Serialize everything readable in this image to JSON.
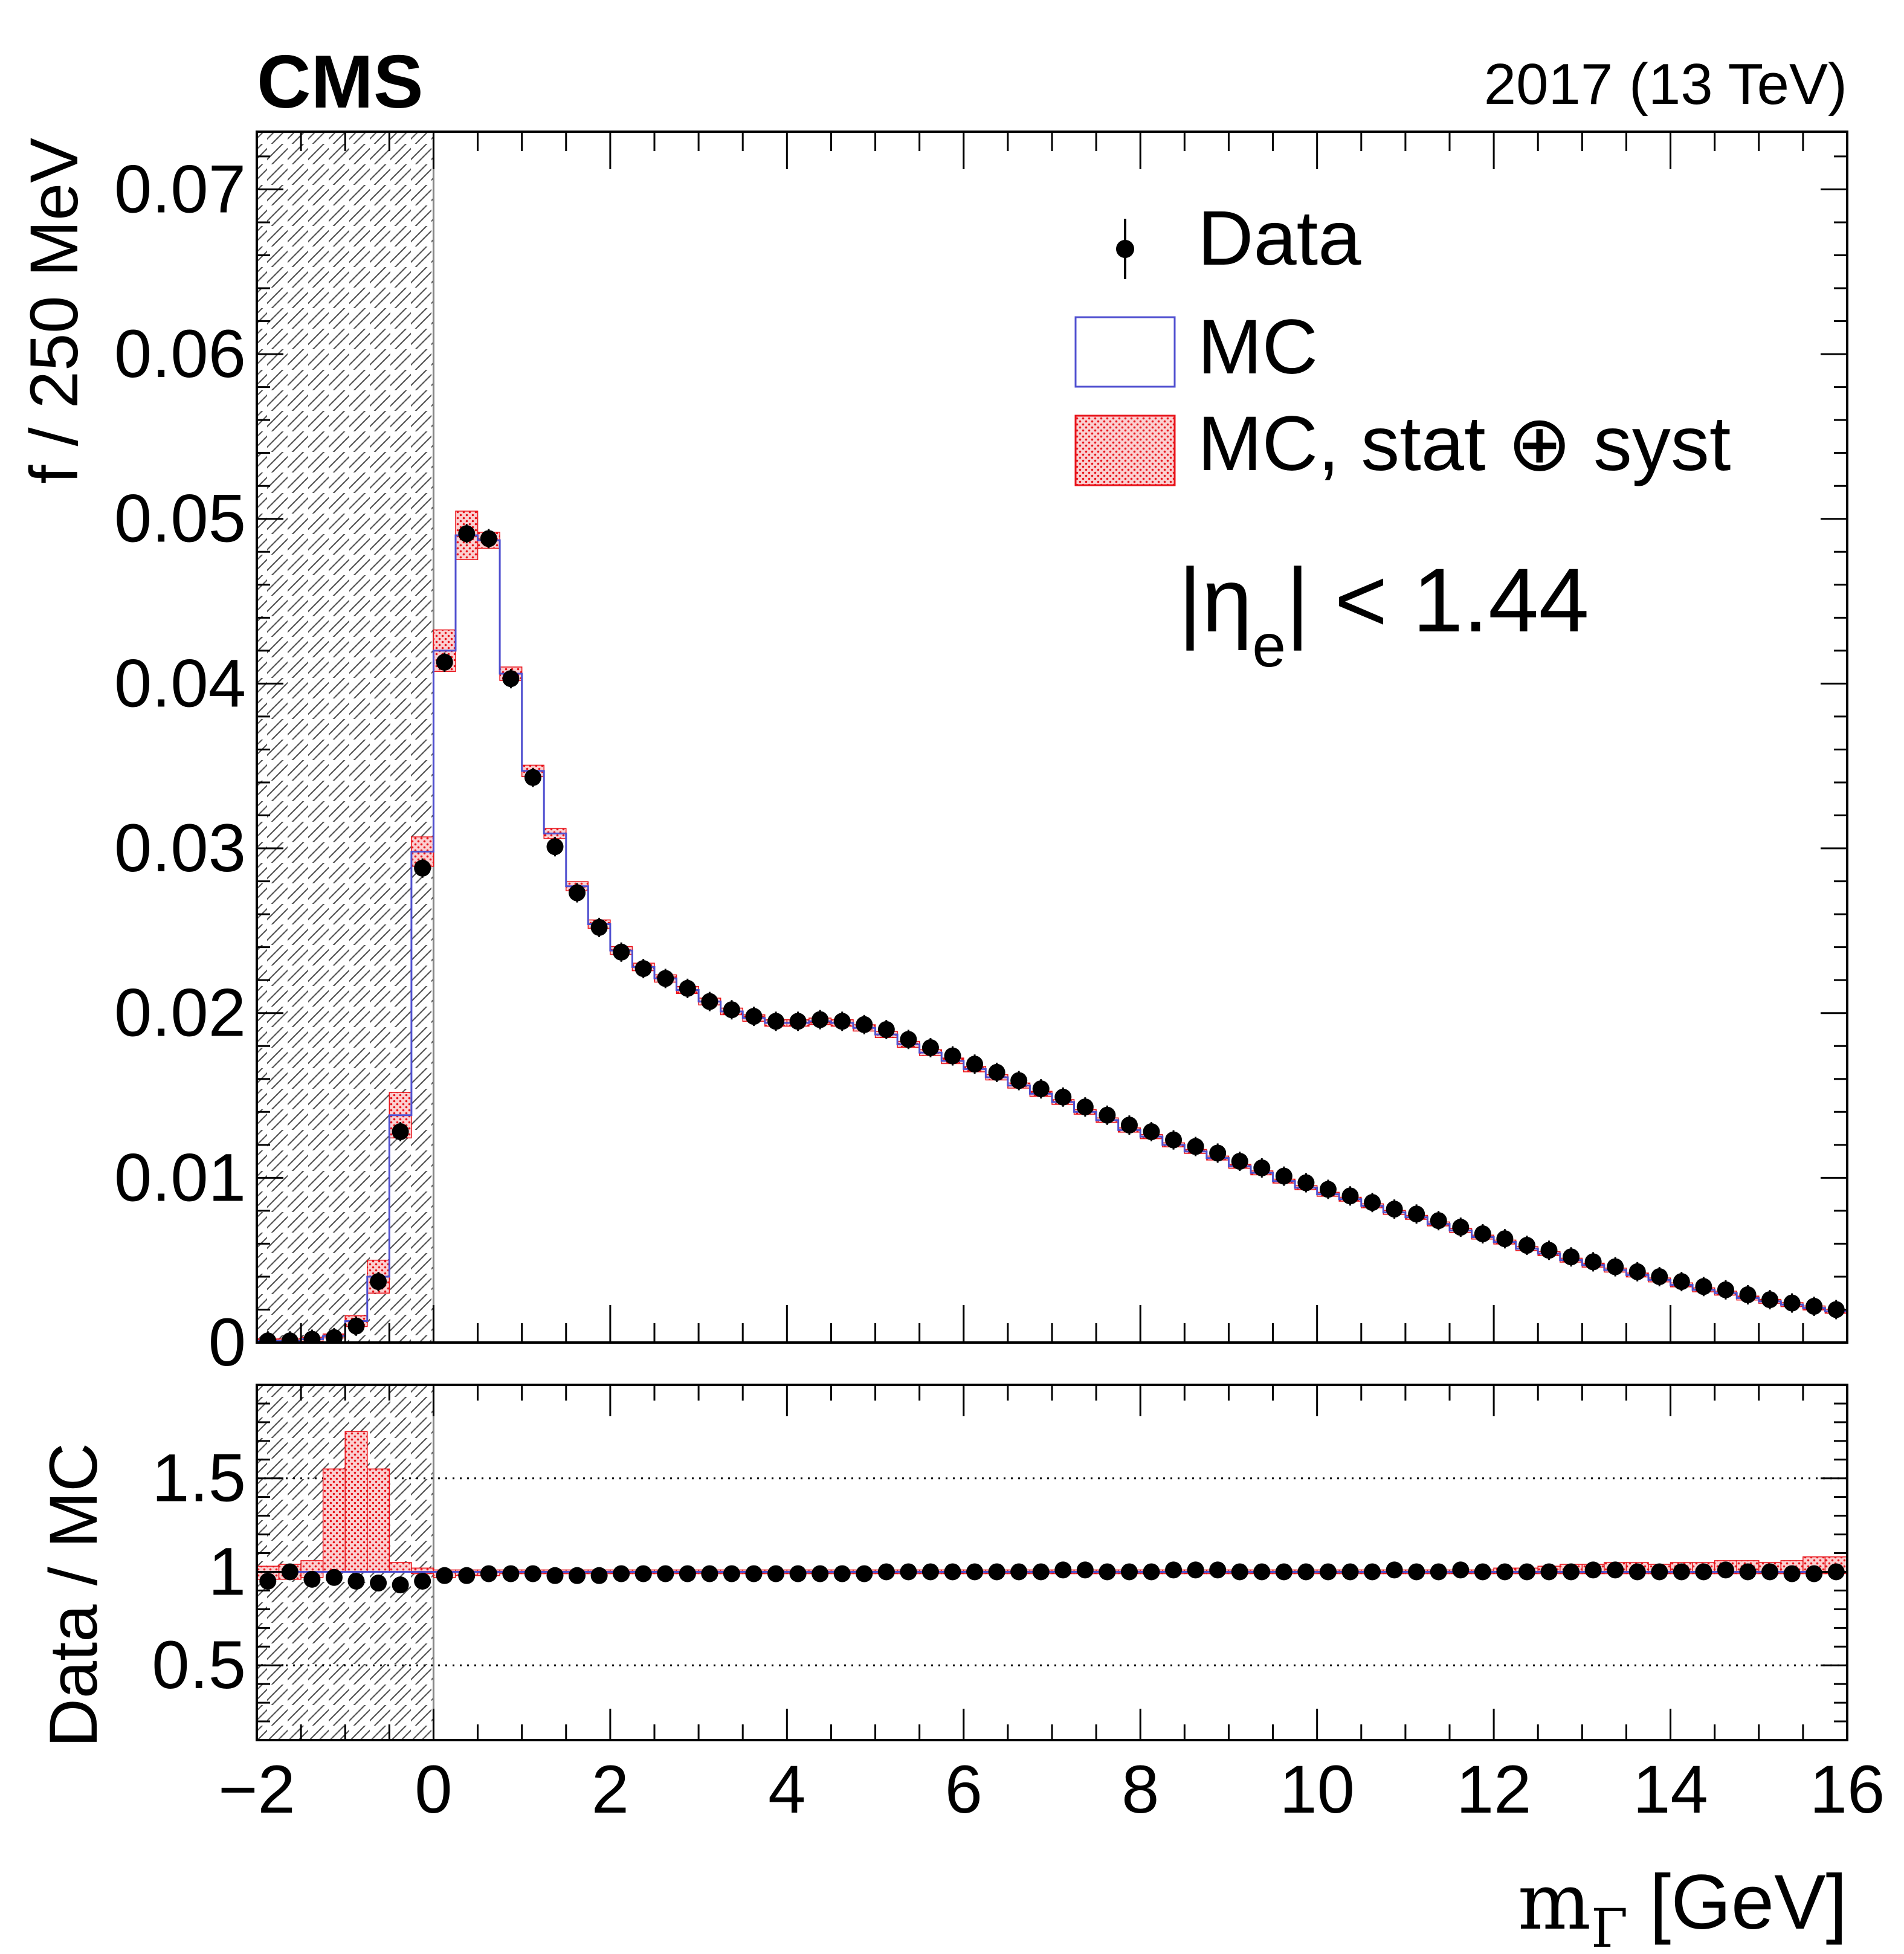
{
  "colors": {
    "data": "#000000",
    "mc_line": "#5050d0",
    "band": "#e8141b",
    "band_fill": "#f7a6a8",
    "hatch": "#555555"
  },
  "chart_data": [
    {
      "type": "line",
      "name": "main",
      "experiment_label": "CMS",
      "energy_label": "2017 (13 TeV)",
      "annotation": {
        "text": "|η",
        "subscript": "e",
        "rest": "| < 1.44"
      },
      "ylabel": "f / 250 MeV",
      "xlim": [
        -2,
        16
      ],
      "ylim": [
        0,
        0.0735
      ],
      "y_ticks": [
        {
          "v": 0,
          "label": "0"
        },
        {
          "v": 0.01,
          "label": "0.01"
        },
        {
          "v": 0.02,
          "label": "0.02"
        },
        {
          "v": 0.03,
          "label": "0.03"
        },
        {
          "v": 0.04,
          "label": "0.04"
        },
        {
          "v": 0.05,
          "label": "0.05"
        },
        {
          "v": 0.06,
          "label": "0.06"
        },
        {
          "v": 0.07,
          "label": "0.07"
        }
      ],
      "legend": [
        "Data",
        "MC",
        "MC, stat ⊕ syst"
      ],
      "legend_position": "top-right",
      "excluded_region": [
        -2,
        0
      ],
      "bin_width": 0.25,
      "bin_start": -2,
      "data_values": [
        0.0001,
        0.0001,
        0.0002,
        0.0003,
        0.001,
        0.0037,
        0.0128,
        0.0288,
        0.0413,
        0.0491,
        0.0488,
        0.0403,
        0.0343,
        0.0301,
        0.0273,
        0.0252,
        0.0237,
        0.0227,
        0.0221,
        0.0215,
        0.0207,
        0.0202,
        0.0198,
        0.0195,
        0.0195,
        0.0196,
        0.0195,
        0.0193,
        0.019,
        0.0184,
        0.0179,
        0.0174,
        0.0169,
        0.0164,
        0.0159,
        0.0154,
        0.0149,
        0.0143,
        0.0138,
        0.0132,
        0.0128,
        0.0123,
        0.0119,
        0.0115,
        0.011,
        0.0106,
        0.0101,
        0.0097,
        0.0093,
        0.0089,
        0.0085,
        0.0081,
        0.0078,
        0.0074,
        0.007,
        0.0066,
        0.0063,
        0.0059,
        0.0056,
        0.0052,
        0.0049,
        0.0046,
        0.0043,
        0.004,
        0.0037,
        0.0034,
        0.0032,
        0.0029,
        0.0026,
        0.0024,
        0.0022,
        0.002
      ],
      "mc_values": [
        0.0001,
        0.0001,
        0.0002,
        0.0004,
        0.0013,
        0.004,
        0.0138,
        0.0298,
        0.042,
        0.049,
        0.0487,
        0.0406,
        0.0347,
        0.0309,
        0.0277,
        0.0254,
        0.0238,
        0.0228,
        0.0221,
        0.0214,
        0.0207,
        0.0201,
        0.0197,
        0.0194,
        0.0194,
        0.0195,
        0.0194,
        0.0191,
        0.0187,
        0.0181,
        0.0176,
        0.0171,
        0.0166,
        0.0161,
        0.0156,
        0.0151,
        0.0146,
        0.014,
        0.0135,
        0.0129,
        0.0125,
        0.012,
        0.0116,
        0.0112,
        0.0107,
        0.0103,
        0.0098,
        0.0094,
        0.009,
        0.0087,
        0.0083,
        0.0079,
        0.0076,
        0.0072,
        0.0068,
        0.0064,
        0.0061,
        0.0057,
        0.0054,
        0.005,
        0.0047,
        0.0044,
        0.0041,
        0.0038,
        0.0035,
        0.0032,
        0.003,
        0.0027,
        0.0025,
        0.0023,
        0.0021,
        0.0019
      ],
      "band_rel": [
        0.2,
        0.2,
        0.2,
        0.2,
        0.25,
        0.25,
        0.1,
        0.03,
        0.03,
        0.03,
        0.01,
        0.01,
        0.01,
        0.01,
        0.01,
        0.01,
        0.01,
        0.01,
        0.01,
        0.01,
        0.01,
        0.01,
        0.01,
        0.01,
        0.01,
        0.01,
        0.01,
        0.01,
        0.01,
        0.01,
        0.01,
        0.01,
        0.01,
        0.01,
        0.01,
        0.01,
        0.01,
        0.01,
        0.01,
        0.01,
        0.01,
        0.01,
        0.01,
        0.01,
        0.01,
        0.01,
        0.01,
        0.01,
        0.01,
        0.01,
        0.01,
        0.01,
        0.01,
        0.01,
        0.01,
        0.01,
        0.01,
        0.01,
        0.01,
        0.01,
        0.01,
        0.01,
        0.01,
        0.01,
        0.01,
        0.01,
        0.01,
        0.01,
        0.01,
        0.01,
        0.01,
        0.01
      ]
    },
    {
      "type": "line",
      "name": "ratio",
      "ylabel": "Data / MC",
      "xlabel_main": "m",
      "xlabel_sub": "Γ",
      "xlabel_unit": " [GeV]",
      "xlim": [
        -2,
        16
      ],
      "ylim": [
        0.1,
        2.0
      ],
      "y_ticks": [
        {
          "v": 0.5,
          "label": "0.5"
        },
        {
          "v": 1,
          "label": "1"
        },
        {
          "v": 1.5,
          "label": "1.5"
        }
      ],
      "x_ticks": [
        {
          "v": -2,
          "label": "−2"
        },
        {
          "v": 0,
          "label": "0"
        },
        {
          "v": 2,
          "label": "2"
        },
        {
          "v": 4,
          "label": "4"
        },
        {
          "v": 6,
          "label": "6"
        },
        {
          "v": 8,
          "label": "8"
        },
        {
          "v": 10,
          "label": "10"
        },
        {
          "v": 12,
          "label": "12"
        },
        {
          "v": 14,
          "label": "14"
        },
        {
          "v": 16,
          "label": "16"
        }
      ],
      "reference_lines": [
        0.5,
        1.5
      ],
      "excluded_region": [
        -2,
        0
      ],
      "bin_width": 0.25,
      "bin_start": -2,
      "ratio_values": [
        0.95,
        1.0,
        0.96,
        0.97,
        0.95,
        0.94,
        0.93,
        0.95,
        0.98,
        0.98,
        0.99,
        0.99,
        0.99,
        0.98,
        0.98,
        0.98,
        0.99,
        0.99,
        0.99,
        0.99,
        0.99,
        0.99,
        0.99,
        0.99,
        0.99,
        0.99,
        0.99,
        0.99,
        1.0,
        1.0,
        1.0,
        1.0,
        1.0,
        1.0,
        1.0,
        1.0,
        1.01,
        1.01,
        1.0,
        1.0,
        1.0,
        1.01,
        1.01,
        1.01,
        1.0,
        1.0,
        1.0,
        1.0,
        1.0,
        1.0,
        1.0,
        1.01,
        1.0,
        1.0,
        1.01,
        1.0,
        1.0,
        1.0,
        1.0,
        1.0,
        1.01,
        1.01,
        1.0,
        1.0,
        1.0,
        1.0,
        1.01,
        1.0,
        1.0,
        0.99,
        0.99,
        1.0
      ],
      "band_lo": [
        0.96,
        0.96,
        0.97,
        1.0,
        1.0,
        1.0,
        1.0,
        0.99,
        0.97,
        0.98,
        0.98,
        0.99,
        0.99,
        0.99,
        0.99,
        0.99,
        0.99,
        0.99,
        0.99,
        0.99,
        0.99,
        0.99,
        0.99,
        0.99,
        0.99,
        0.99,
        0.99,
        0.99,
        0.99,
        0.99,
        0.99,
        0.99,
        0.99,
        0.99,
        0.99,
        0.99,
        0.99,
        0.99,
        0.99,
        0.99,
        0.99,
        0.99,
        0.99,
        0.99,
        0.99,
        0.99,
        0.99,
        0.99,
        0.99,
        0.99,
        0.99,
        0.99,
        0.99,
        0.99,
        0.99,
        0.99,
        0.99,
        0.99,
        0.99,
        0.99,
        0.99,
        0.99,
        0.99,
        0.99,
        0.99,
        0.99,
        0.99,
        0.99,
        0.99,
        0.99,
        0.99,
        0.99
      ],
      "band_hi": [
        1.03,
        1.04,
        1.06,
        1.55,
        1.75,
        1.55,
        1.05,
        1.02,
        1.01,
        1.01,
        1.01,
        1.01,
        1.01,
        1.01,
        1.01,
        1.01,
        1.01,
        1.01,
        1.01,
        1.01,
        1.01,
        1.01,
        1.01,
        1.01,
        1.01,
        1.01,
        1.01,
        1.01,
        1.01,
        1.01,
        1.01,
        1.01,
        1.01,
        1.01,
        1.01,
        1.01,
        1.01,
        1.01,
        1.01,
        1.01,
        1.01,
        1.01,
        1.01,
        1.01,
        1.01,
        1.01,
        1.01,
        1.01,
        1.01,
        1.01,
        1.01,
        1.01,
        1.01,
        1.01,
        1.01,
        1.01,
        1.02,
        1.02,
        1.03,
        1.04,
        1.04,
        1.05,
        1.05,
        1.04,
        1.05,
        1.05,
        1.06,
        1.06,
        1.05,
        1.06,
        1.08,
        1.08
      ]
    }
  ]
}
